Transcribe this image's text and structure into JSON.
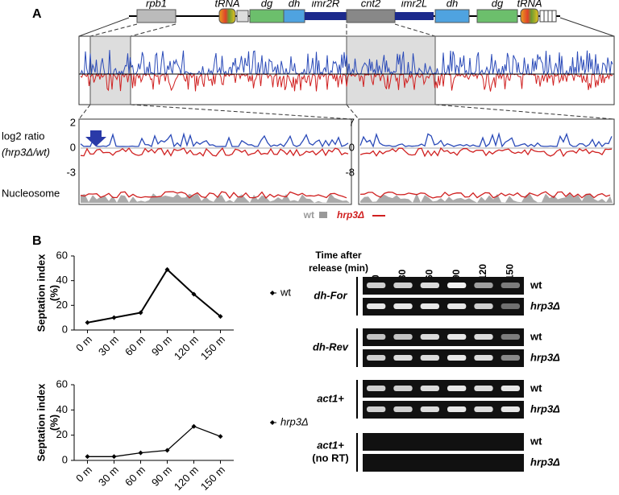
{
  "panel_a": {
    "label": "A",
    "genes": [
      "rpb1",
      "tRNA",
      "dg",
      "dh",
      "imr2R",
      "cnt2",
      "imr2L",
      "dh",
      "dg",
      "tRNA"
    ],
    "y_label": "log2 ratio",
    "y_label_ratio": "(hrp3Δ/wt)",
    "left_ticks": [
      2,
      0,
      -3
    ],
    "right_ticks": [
      7,
      0,
      -8
    ],
    "nucleosome": "Nucleosome",
    "legend": [
      "wt",
      "hrp3Δ"
    ]
  },
  "panel_b": {
    "label": "B",
    "gel": {
      "header": [
        "Time after",
        "release (min)"
      ],
      "lanes": [
        "0",
        "30",
        "60",
        "90",
        "120",
        "150"
      ],
      "groups": [
        "dh-For",
        "dh-Rev",
        "act1+",
        "act1+"
      ],
      "group_note": "(no RT)",
      "strains": [
        "wt",
        "hrp3Δ"
      ]
    }
  },
  "chart_data": [
    {
      "type": "line",
      "ylabel": "Septation index",
      "ylabel_unit": "(%)",
      "categories": [
        "0 m",
        "30 m",
        "60 m",
        "90 m",
        "120 m",
        "150 m"
      ],
      "series": [
        {
          "name": "wt",
          "color": "#000000",
          "values": [
            6,
            10,
            14,
            49,
            29,
            11
          ]
        }
      ],
      "ylim": [
        0,
        60
      ],
      "yticks": [
        0,
        20,
        40,
        60
      ]
    },
    {
      "type": "line",
      "ylabel": "Septation index",
      "ylabel_unit": "(%)",
      "categories": [
        "0 m",
        "30 m",
        "60 m",
        "90 m",
        "120 m",
        "150 m"
      ],
      "series": [
        {
          "name": "hrp3Δ",
          "color": "#000000",
          "values": [
            3,
            3,
            6,
            8,
            27,
            19
          ]
        }
      ],
      "ylim": [
        0,
        60
      ],
      "yticks": [
        0,
        20,
        40,
        60
      ]
    }
  ]
}
